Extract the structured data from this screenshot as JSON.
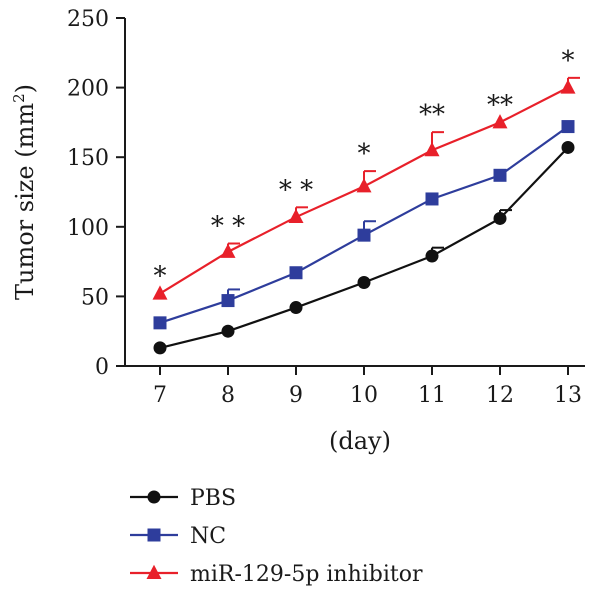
{
  "chart_data": {
    "type": "line",
    "xlabel": "(day)",
    "ylabel": "Tumor size (mm",
    "ylabel_superscript": "2",
    "ylabel_suffix": ")",
    "x": [
      7,
      8,
      9,
      10,
      11,
      12,
      13
    ],
    "x_tick_labels": [
      "7",
      "8",
      "9",
      "10",
      "11",
      "12",
      "13"
    ],
    "xlim": [
      7,
      13
    ],
    "ylim": [
      0,
      250
    ],
    "y_ticks": [
      0,
      50,
      100,
      150,
      200,
      250
    ],
    "y_tick_labels": [
      "0",
      "50",
      "100",
      "150",
      "200",
      "250"
    ],
    "grid": false,
    "legend_position": "bottom",
    "series": [
      {
        "name": "PBS",
        "color": "#111111",
        "marker": "circle",
        "values": [
          13,
          25,
          42,
          60,
          79,
          106,
          157
        ],
        "errors": [
          0,
          0,
          0,
          0,
          6,
          6,
          0
        ]
      },
      {
        "name": "NC",
        "color": "#2e3d9c",
        "marker": "square",
        "values": [
          31,
          47,
          67,
          94,
          120,
          137,
          172
        ],
        "errors": [
          0,
          8,
          0,
          10,
          0,
          0,
          0
        ]
      },
      {
        "name": "miR-129-5p inhibitor",
        "color": "#e8202a",
        "marker": "triangle",
        "values": [
          52,
          82,
          107,
          129,
          155,
          175,
          200
        ],
        "errors": [
          0,
          6,
          7,
          11,
          13,
          0,
          7
        ]
      }
    ],
    "significance": [
      "*",
      "* *",
      "* *",
      "*",
      "**",
      "**",
      "*"
    ]
  }
}
